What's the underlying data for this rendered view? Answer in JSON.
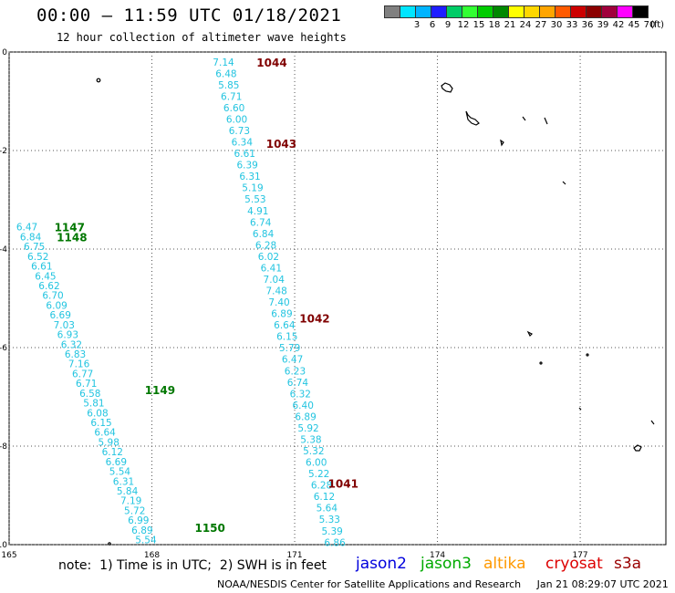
{
  "header": {
    "title": "00:00 — 11:59 UTC 01/18/2021",
    "subtitle": "12 hour collection of altimeter wave heights"
  },
  "legend": {
    "unit": "(ft)",
    "items": [
      {
        "label": "",
        "color": "#808080"
      },
      {
        "label": "3",
        "color": "#00e5ff"
      },
      {
        "label": "6",
        "color": "#00b4ff"
      },
      {
        "label": "9",
        "color": "#1e1eff"
      },
      {
        "label": "12",
        "color": "#00cc66"
      },
      {
        "label": "15",
        "color": "#33ff33"
      },
      {
        "label": "18",
        "color": "#00cc00"
      },
      {
        "label": "21",
        "color": "#008800"
      },
      {
        "label": "24",
        "color": "#ffff00"
      },
      {
        "label": "27",
        "color": "#ffd700"
      },
      {
        "label": "30",
        "color": "#ffa500"
      },
      {
        "label": "33",
        "color": "#ff5a00"
      },
      {
        "label": "36",
        "color": "#cc0000"
      },
      {
        "label": "39",
        "color": "#8b0000"
      },
      {
        "label": "42",
        "color": "#a0003c"
      },
      {
        "label": "45",
        "color": "#ff00ff"
      },
      {
        "label": "70",
        "color": "#000000"
      }
    ]
  },
  "axes": {
    "x_ticks": [
      "165",
      "168",
      "171",
      "174",
      "177"
    ],
    "y_ticks": [
      "0",
      "-2",
      "-4",
      "-6",
      "-8",
      "-10"
    ]
  },
  "tracks": [
    {
      "id": "1044",
      "color": "#800000",
      "lat": -0.2,
      "lon": 170.2
    },
    {
      "id": "1043",
      "color": "#800000",
      "lat": -1.85,
      "lon": 170.4
    },
    {
      "id": "1042",
      "color": "#800000",
      "lat": -5.4,
      "lon": 171.1
    },
    {
      "id": "1041",
      "color": "#800000",
      "lat": -8.75,
      "lon": 171.7
    },
    {
      "id": "1147",
      "color": "#007700",
      "lat": -3.55,
      "lon": 165.95
    },
    {
      "id": "1148",
      "color": "#007700",
      "lat": -3.75,
      "lon": 166.0
    },
    {
      "id": "1149",
      "color": "#007700",
      "lat": -6.85,
      "lon": 167.85
    },
    {
      "id": "1150",
      "color": "#007700",
      "lat": -9.65,
      "lon": 168.9
    }
  ],
  "observations": {
    "color": "#22c4e0",
    "tracks": [
      {
        "start": {
          "lat": -0.2,
          "lon": 169.28
        },
        "end": {
          "lat": -9.95,
          "lon": 171.62
        },
        "values": [
          "7.14",
          "6.48",
          "5.85",
          "6.71",
          "6.60",
          "6.00",
          "6.73",
          "6.34",
          "6.61",
          "6.39",
          "6.31",
          "5.19",
          "5.53",
          "4.91",
          "6.74",
          "6.84",
          "6.28",
          "6.02",
          "6.41",
          "7.04",
          "7.48",
          "7.40",
          "6.89",
          "6.64",
          "6.15",
          "5.79",
          "6.47",
          "6.23",
          "6.74",
          "6.32",
          "6.40",
          "6.89",
          "5.92",
          "5.38",
          "5.32",
          "6.00",
          "5.22",
          "6.28",
          "6.12",
          "5.64",
          "5.33",
          "5.39",
          "6.86"
        ]
      },
      {
        "start": {
          "lat": -3.55,
          "lon": 165.15
        },
        "end": {
          "lat": -9.9,
          "lon": 167.65
        },
        "values": [
          "6.47",
          "6.84",
          "6.75",
          "6.52",
          "6.61",
          "6.45",
          "6.62",
          "6.70",
          "6.09",
          "6.69",
          "7.03",
          "6.93",
          "6.32",
          "6.83",
          "7.16",
          "6.77",
          "6.71",
          "6.58",
          "5.81",
          "6.08",
          "6.15",
          "6.64",
          "5.98",
          "6.12",
          "6.69",
          "5.54",
          "6.31",
          "5.84",
          "7.19",
          "5.72",
          "6.99",
          "6.89",
          "5.54"
        ]
      }
    ]
  },
  "footer": {
    "note": "note:  1) Time is in UTC;  2) SWH is in feet",
    "missions": [
      {
        "label": "jason2",
        "color": "#0000dd"
      },
      {
        "label": "jason3",
        "color": "#00aa00"
      },
      {
        "label": "altika",
        "color": "#ff9900"
      },
      {
        "label": "cryosat",
        "color": "#dd0000"
      },
      {
        "label": "s3a",
        "color": "#990000"
      }
    ],
    "credit": "NOAA/NESDIS Center for Satellite Applications and Research     Jan 21 08:29:07 UTC 2021"
  }
}
